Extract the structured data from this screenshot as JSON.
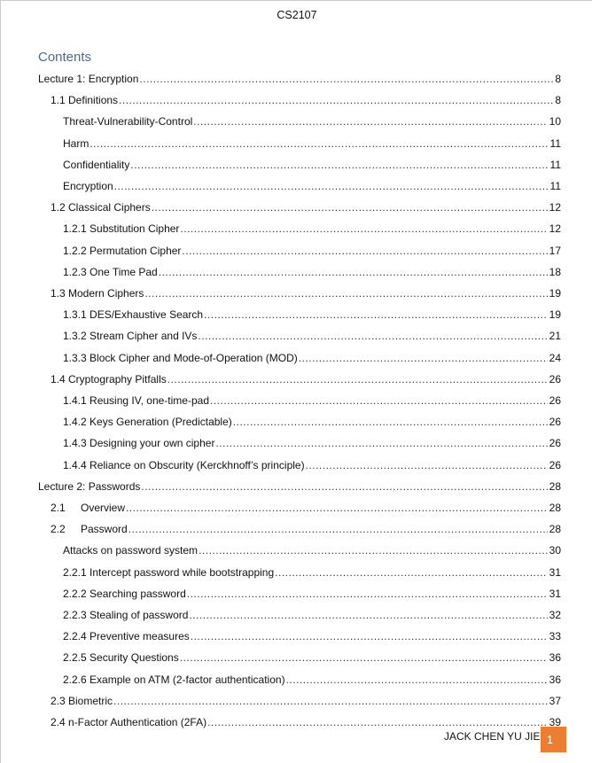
{
  "header": {
    "course": "CS2107"
  },
  "toc": {
    "title": "Contents",
    "entries": [
      {
        "level": 0,
        "num": "",
        "text": "Lecture 1: Encryption",
        "page": "8"
      },
      {
        "level": 1,
        "num": "",
        "text": "1.1 Definitions",
        "page": "8"
      },
      {
        "level": 2,
        "num": "",
        "text": "Threat-Vulnerability-Control",
        "page": "10"
      },
      {
        "level": 2,
        "num": "",
        "text": "Harm",
        "page": "11"
      },
      {
        "level": 2,
        "num": "",
        "text": "Confidentiality",
        "page": "11"
      },
      {
        "level": 2,
        "num": "",
        "text": "Encryption",
        "page": "11"
      },
      {
        "level": 1,
        "num": "",
        "text": "1.2 Classical Ciphers",
        "page": "12"
      },
      {
        "level": 2,
        "num": "",
        "text": "1.2.1 Substitution Cipher",
        "page": "12"
      },
      {
        "level": 2,
        "num": "",
        "text": "1.2.2 Permutation Cipher",
        "page": "17"
      },
      {
        "level": 2,
        "num": "",
        "text": "1.2.3 One Time Pad",
        "page": "18"
      },
      {
        "level": 1,
        "num": "",
        "text": "1.3 Modern Ciphers",
        "page": "19"
      },
      {
        "level": 2,
        "num": "",
        "text": "1.3.1 DES/Exhaustive Search",
        "page": "19"
      },
      {
        "level": 2,
        "num": "",
        "text": "1.3.2 Stream Cipher and IVs",
        "page": "21"
      },
      {
        "level": 2,
        "num": "",
        "text": "1.3.3 Block Cipher and Mode-of-Operation (MOD)",
        "page": "24"
      },
      {
        "level": 1,
        "num": "",
        "text": "1.4 Cryptography Pitfalls",
        "page": "26"
      },
      {
        "level": 2,
        "num": "",
        "text": "1.4.1 Reusing IV, one-time-pad",
        "page": "26"
      },
      {
        "level": 2,
        "num": "",
        "text": "1.4.2 Keys Generation (Predictable)",
        "page": "26"
      },
      {
        "level": 2,
        "num": "",
        "text": "1.4.3 Designing your own cipher",
        "page": "26"
      },
      {
        "level": 2,
        "num": "",
        "text": "1.4.4 Reliance on Obscurity (Kerckhnoff’s principle)",
        "page": "26"
      },
      {
        "level": 0,
        "num": "",
        "text": "Lecture 2: Passwords",
        "page": "28"
      },
      {
        "level": 1,
        "num": "2.1",
        "text": "Overview",
        "page": "28"
      },
      {
        "level": 1,
        "num": "2.2",
        "text": "Password",
        "page": "28"
      },
      {
        "level": 2,
        "num": "",
        "text": "Attacks on password system",
        "page": "30"
      },
      {
        "level": 2,
        "num": "",
        "text": "2.2.1 Intercept password while bootstrapping",
        "page": "31"
      },
      {
        "level": 2,
        "num": "",
        "text": "2.2.2 Searching password",
        "page": "31"
      },
      {
        "level": 2,
        "num": "",
        "text": "2.2.3 Stealing of password",
        "page": "32"
      },
      {
        "level": 2,
        "num": "",
        "text": "2.2.4 Preventive measures",
        "page": "33"
      },
      {
        "level": 2,
        "num": "",
        "text": "2.2.5 Security Questions",
        "page": "36"
      },
      {
        "level": 2,
        "num": "",
        "text": "2.2.6 Example on ATM (2-factor authentication)",
        "page": "36"
      },
      {
        "level": 1,
        "num": "",
        "text": "2.3 Biometric",
        "page": "37"
      },
      {
        "level": 1,
        "num": "",
        "text": "2.4 n-Factor Authentication (2FA)",
        "page": "39"
      }
    ]
  },
  "footer": {
    "author": "JACK CHEN YU JIE",
    "page_number": "1",
    "accent_color": "#ed7d31"
  }
}
